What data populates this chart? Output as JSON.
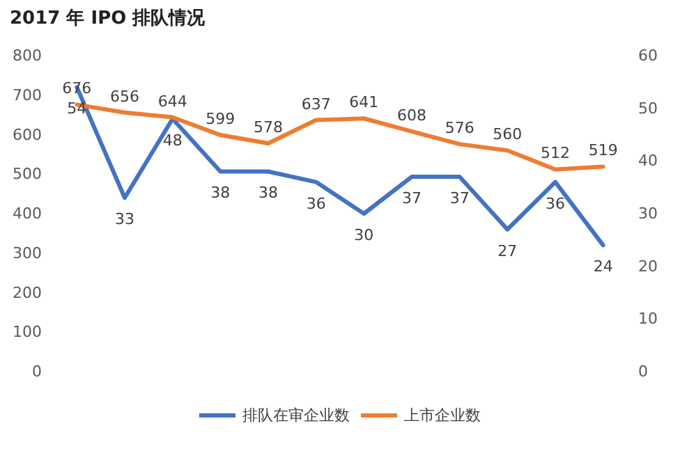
{
  "chart_data": {
    "type": "line",
    "title": "2017 年 IPO 排队情况",
    "categories": [
      null,
      null,
      null,
      null,
      null,
      null,
      null,
      null,
      null,
      null,
      null,
      null
    ],
    "series": [
      {
        "name": "排队在审企业数",
        "color": "#4472c4",
        "axis": "y2",
        "values": [
          54,
          33,
          48,
          38,
          38,
          36,
          30,
          37,
          37,
          27,
          36,
          24
        ]
      },
      {
        "name": "上市企业数",
        "color": "#ed7d31",
        "values": [
          676,
          656,
          644,
          599,
          578,
          637,
          641,
          608,
          576,
          560,
          512,
          519
        ]
      }
    ],
    "ylim": [
      0,
      800
    ],
    "yticks": [
      0,
      100,
      200,
      300,
      400,
      500,
      600,
      700,
      800
    ],
    "y2lim": [
      0,
      60
    ],
    "y2ticks": [
      0,
      10,
      20,
      30,
      40,
      50,
      60
    ],
    "data_labels": true,
    "grid": false,
    "legend": "bottom",
    "marker": "none",
    "line_style": "solid"
  }
}
